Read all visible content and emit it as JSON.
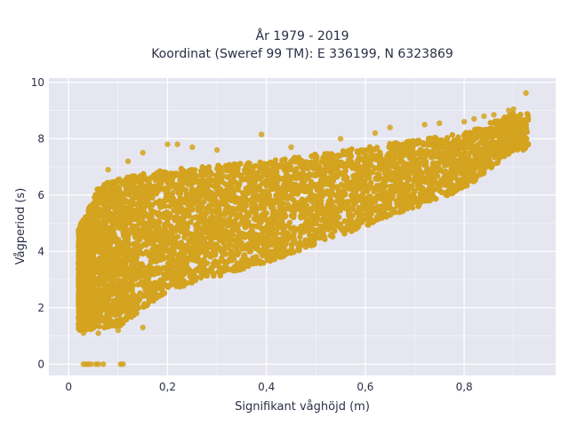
{
  "chart_data": {
    "type": "scatter",
    "title_line1": "År 1979 - 2019",
    "title_line2": "Koordinat (Sweref 99 TM): E 336199, N 6323869",
    "xlabel": "Signifikant våghöjd (m)",
    "ylabel": "Vågperiod (s)",
    "xlim": [
      -0.04,
      0.985
    ],
    "ylim": [
      -0.4,
      10.15
    ],
    "x_ticks": [
      0,
      0.2,
      0.4,
      0.6,
      0.8
    ],
    "x_tick_labels": [
      "0",
      "0,2",
      "0,4",
      "0,6",
      "0,8"
    ],
    "y_ticks": [
      0,
      2,
      4,
      6,
      8,
      10
    ],
    "y_tick_labels": [
      "0",
      "2",
      "4",
      "6",
      "8",
      "10"
    ],
    "grid": true,
    "legend": "none",
    "colors": {
      "marker": "#d4a31f",
      "plot_bg": "#e5e6f0",
      "grid": "#ffffff"
    },
    "point_cloud": {
      "description_of_density": "dense band",
      "x_range": [
        0.02,
        0.93
      ],
      "lower_envelope": [
        [
          0.02,
          1.2
        ],
        [
          0.1,
          1.3
        ],
        [
          0.2,
          2.6
        ],
        [
          0.4,
          3.6
        ],
        [
          0.6,
          4.9
        ],
        [
          0.8,
          6.2
        ],
        [
          0.9,
          7.6
        ]
      ],
      "upper_envelope": [
        [
          0.02,
          4.8
        ],
        [
          0.06,
          6.3
        ],
        [
          0.1,
          6.6
        ],
        [
          0.2,
          6.9
        ],
        [
          0.4,
          7.2
        ],
        [
          0.6,
          7.7
        ],
        [
          0.8,
          8.2
        ],
        [
          0.9,
          8.9
        ]
      ]
    },
    "outliers": [
      [
        0.925,
        9.62
      ],
      [
        0.9,
        9.05
      ],
      [
        0.89,
        9.0
      ],
      [
        0.86,
        8.85
      ],
      [
        0.84,
        8.8
      ],
      [
        0.82,
        8.7
      ],
      [
        0.8,
        8.6
      ],
      [
        0.75,
        8.55
      ],
      [
        0.72,
        8.5
      ],
      [
        0.65,
        8.4
      ],
      [
        0.62,
        8.2
      ],
      [
        0.55,
        8.0
      ],
      [
        0.45,
        7.7
      ],
      [
        0.39,
        8.15
      ],
      [
        0.3,
        7.6
      ],
      [
        0.25,
        7.7
      ],
      [
        0.2,
        7.8
      ],
      [
        0.22,
        7.8
      ],
      [
        0.15,
        7.5
      ],
      [
        0.12,
        7.2
      ],
      [
        0.08,
        6.9
      ],
      [
        0.15,
        1.3
      ],
      [
        0.1,
        1.2
      ],
      [
        0.06,
        1.1
      ],
      [
        0.02,
        2.3
      ],
      [
        0.03,
        1.1
      ],
      [
        0.03,
        0.0
      ],
      [
        0.035,
        0.0
      ],
      [
        0.04,
        0.0
      ],
      [
        0.045,
        0.0
      ],
      [
        0.055,
        0.0
      ],
      [
        0.06,
        0.0
      ],
      [
        0.07,
        0.0
      ],
      [
        0.105,
        0.0
      ],
      [
        0.11,
        0.0
      ]
    ]
  }
}
